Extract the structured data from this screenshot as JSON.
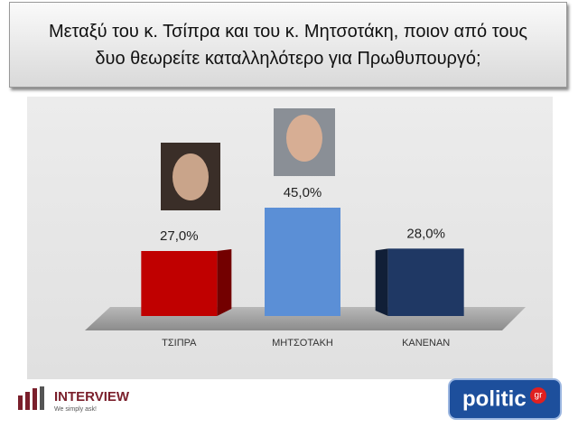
{
  "chart_data": {
    "type": "bar",
    "title": "Μεταξύ του κ. Τσίπρα και του κ. Μητσοτάκη, ποιον από τους δυο θεωρείτε καταλληλότερο για Πρωθυπουργό;",
    "categories": [
      "ΤΣΙΠΡΑ",
      "ΜΗΤΣΟΤΑΚΗ",
      "ΚΑΝΕΝΑΝ"
    ],
    "values": [
      27,
      45,
      28
    ],
    "value_labels": [
      "27,0%",
      "45,0%",
      "28,0%"
    ],
    "colors": [
      "#c00000",
      "#5b8fd6",
      "#1f3864"
    ]
  },
  "logos": {
    "interview": "INTERVIEW",
    "interview_tagline": "We simply ask!",
    "politic": "politic",
    "politic_suffix": "gr"
  }
}
